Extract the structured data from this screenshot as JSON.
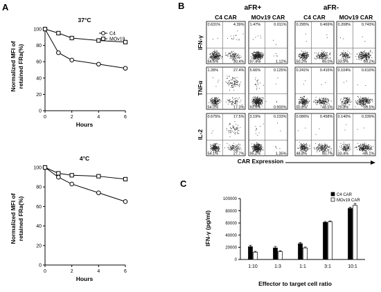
{
  "panels": {
    "a": "A",
    "b": "B",
    "c": "C"
  },
  "chart_data": [
    {
      "type": "line",
      "title": "37°C",
      "xlabel": "Hours",
      "ylabel_line1": "Normalized MFI of",
      "ylabel_line2": "retained FRa(%)",
      "xlim": [
        0,
        6
      ],
      "ylim": [
        0,
        100
      ],
      "xticks": [
        0,
        2,
        4,
        6
      ],
      "yticks": [
        0,
        20,
        40,
        60,
        80,
        100
      ],
      "x": [
        0,
        1,
        2,
        4,
        6
      ],
      "legend_position": "top-right",
      "series": [
        {
          "name": "C4",
          "marker": "circle",
          "values": [
            100,
            71,
            62,
            57,
            52
          ]
        },
        {
          "name": "MOv19",
          "marker": "square",
          "values": [
            100,
            95,
            89,
            86,
            84
          ]
        }
      ]
    },
    {
      "type": "line",
      "title": "4°C",
      "xlabel": "Hours",
      "ylabel_line1": "Normalized MFI of",
      "ylabel_line2": "retained FRa(%)",
      "xlim": [
        0,
        6
      ],
      "ylim": [
        0,
        100
      ],
      "xticks": [
        0,
        2,
        4,
        6
      ],
      "yticks": [
        0,
        20,
        40,
        60,
        80,
        100
      ],
      "x": [
        0,
        1,
        2,
        4,
        6
      ],
      "series": [
        {
          "name": "C4",
          "marker": "circle",
          "values": [
            100,
            90,
            83,
            74,
            65
          ]
        },
        {
          "name": "MOv19",
          "marker": "square",
          "values": [
            100,
            94,
            92,
            91,
            88
          ]
        }
      ]
    },
    {
      "type": "scatter",
      "subtype": "flow-cytometry-grid",
      "group_titles": [
        "aFR+",
        "aFR-"
      ],
      "column_titles": [
        "C4 CAR",
        "MOv19 CAR",
        "C4 CAR",
        "MOv19 CAR"
      ],
      "row_labels": [
        "IFN-γ",
        "TNFα",
        "IL-2"
      ],
      "xlabel": "CAR Expression",
      "quadrant_order": [
        "upper-left",
        "upper-right",
        "lower-left",
        "lower-right"
      ],
      "quadrants": [
        [
          [
            "0.631%",
            "4.39%",
            "64.6%",
            "30.4%"
          ],
          [
            "1.47%",
            "0.011%",
            "97.4%",
            "1.12%"
          ],
          [
            "0.295%",
            "0.469%",
            "50.2%",
            "49.0%"
          ],
          [
            "0.208%",
            "0.743%",
            "33.9%",
            "65.2%"
          ]
        ],
        [
          [
            "1.28%",
            "27.4%",
            "54.0%",
            "17.3%"
          ],
          [
            "5.66%",
            "0.125%",
            "93.3%",
            "0.900%"
          ],
          [
            "0.241%",
            "0.416%",
            "50.8%",
            "48.5%"
          ],
          [
            "0.104%",
            "0.610%",
            "29.8%",
            "69.5%"
          ]
        ],
        [
          [
            "0.675%",
            "17.5%",
            "54.1%",
            "27.7%"
          ],
          [
            "3.19%",
            "0.233%",
            "95.2%",
            "1.35%"
          ],
          [
            "0.086%",
            "0.458%",
            "48.8%",
            "50.7%"
          ],
          [
            "0.140%",
            "0.339%",
            "33.4%",
            "66.1%"
          ]
        ]
      ]
    },
    {
      "type": "bar",
      "xlabel": "Effector to target cell ratio",
      "ylabel": "IFN-γ (pg/ml)",
      "ylim": [
        0,
        100000
      ],
      "yticks": [
        "0",
        "20000",
        "40000",
        "60000",
        "80000",
        "100000"
      ],
      "ytick_values": [
        0,
        20000,
        40000,
        60000,
        80000,
        100000
      ],
      "categories": [
        "1:10",
        "1:3",
        "1:1",
        "3:1",
        "10:1"
      ],
      "legend_position": "top-right",
      "series": [
        {
          "name": "C4 CAR",
          "color": "#000000",
          "values": [
            21000,
            19000,
            26000,
            61000,
            84000
          ],
          "errors": [
            2500,
            2500,
            2000,
            1500,
            2000
          ]
        },
        {
          "name": "MOv19 CAR",
          "color": "#ffffff",
          "values": [
            12000,
            13000,
            19000,
            62000,
            89000
          ],
          "errors": [
            1500,
            1500,
            1500,
            1500,
            3000
          ]
        }
      ]
    }
  ]
}
